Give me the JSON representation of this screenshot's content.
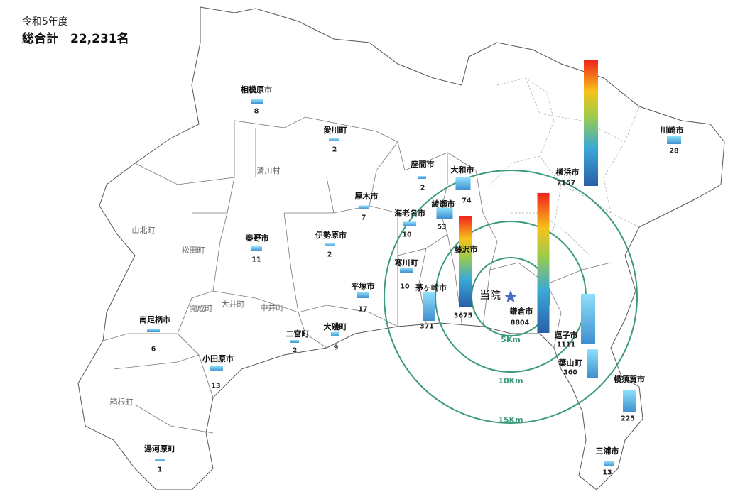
{
  "header": {
    "fiscal_year": "令和5年度",
    "total": "総合計　22,231名"
  },
  "hospital": "当院",
  "rings": [
    "5Km",
    "10Km",
    "15Km"
  ],
  "regions": [
    "清川村",
    "山北町",
    "松田町",
    "開成町",
    "大井町",
    "中井町",
    "箱根町"
  ],
  "places": [
    {
      "name": "相模原市",
      "value": 8
    },
    {
      "name": "愛川町",
      "value": 2
    },
    {
      "name": "座間市",
      "value": 2
    },
    {
      "name": "大和市",
      "value": 74
    },
    {
      "name": "厚木市",
      "value": 7
    },
    {
      "name": "海老名市",
      "value": 10
    },
    {
      "name": "綾瀬市",
      "value": 53
    },
    {
      "name": "伊勢原市",
      "value": 2
    },
    {
      "name": "秦野市",
      "value": 11
    },
    {
      "name": "藤沢市",
      "value": 3675
    },
    {
      "name": "寒川町",
      "value": 10
    },
    {
      "name": "平塚市",
      "value": 17
    },
    {
      "name": "茅ヶ崎市",
      "value": 371
    },
    {
      "name": "横浜市",
      "value": 7157
    },
    {
      "name": "川崎市",
      "value": 28
    },
    {
      "name": "鎌倉市",
      "value": 8804
    },
    {
      "name": "逗子市",
      "value": 1111
    },
    {
      "name": "葉山町",
      "value": 360
    },
    {
      "name": "横須賀市",
      "value": 225
    },
    {
      "name": "三浦市",
      "value": 13
    },
    {
      "name": "南足柄市",
      "value": 6
    },
    {
      "name": "二宮町",
      "value": 2
    },
    {
      "name": "大磯町",
      "value": 9
    },
    {
      "name": "小田原市",
      "value": 13
    },
    {
      "name": "湯河原町",
      "value": 1
    }
  ]
}
